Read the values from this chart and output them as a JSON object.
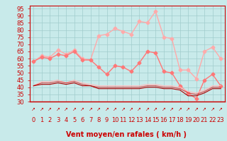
{
  "x": [
    0,
    1,
    2,
    3,
    4,
    5,
    6,
    7,
    8,
    9,
    10,
    11,
    12,
    13,
    14,
    15,
    16,
    17,
    18,
    19,
    20,
    21,
    22,
    23
  ],
  "series": [
    {
      "name": "rafales_top",
      "color": "#ffaaaa",
      "linewidth": 1.0,
      "marker": "D",
      "markersize": 2.5,
      "values": [
        58,
        62,
        61,
        66,
        63,
        66,
        60,
        59,
        76,
        77,
        81,
        79,
        77,
        86,
        85,
        93,
        75,
        74,
        52,
        52,
        46,
        65,
        68,
        60
      ]
    },
    {
      "name": "rafales_mid",
      "color": "#ff7777",
      "linewidth": 1.0,
      "marker": "D",
      "markersize": 2.5,
      "values": [
        58,
        61,
        60,
        63,
        62,
        65,
        59,
        59,
        54,
        49,
        55,
        54,
        51,
        57,
        65,
        64,
        51,
        50,
        41,
        36,
        32,
        45,
        49,
        41
      ]
    },
    {
      "name": "vent_band_top",
      "color": "#ffbbbb",
      "linewidth": 0.8,
      "marker": null,
      "markersize": 0,
      "values": [
        41,
        44,
        44,
        45,
        43,
        45,
        43,
        42,
        41,
        41,
        41,
        41,
        41,
        41,
        42,
        42,
        41,
        41,
        40,
        37,
        36,
        38,
        41,
        41
      ]
    },
    {
      "name": "vent_band_mid",
      "color": "#dd4444",
      "linewidth": 0.8,
      "marker": null,
      "markersize": 0,
      "values": [
        41,
        43,
        43,
        44,
        43,
        44,
        42,
        41,
        40,
        40,
        40,
        40,
        40,
        40,
        41,
        41,
        40,
        40,
        39,
        36,
        35,
        37,
        40,
        40
      ]
    },
    {
      "name": "vent_band_bot",
      "color": "#aa0000",
      "linewidth": 0.8,
      "marker": null,
      "markersize": 0,
      "values": [
        41,
        42,
        42,
        43,
        42,
        43,
        41,
        41,
        39,
        39,
        39,
        39,
        39,
        39,
        40,
        40,
        39,
        39,
        38,
        34,
        34,
        36,
        39,
        39
      ]
    }
  ],
  "xlabel": "Vent moyen/en rafales ( km/h )",
  "ylim": [
    30,
    97
  ],
  "yticks": [
    30,
    35,
    40,
    45,
    50,
    55,
    60,
    65,
    70,
    75,
    80,
    85,
    90,
    95
  ],
  "bg_color": "#c8eaea",
  "grid_color": "#a0cccc",
  "axis_color": "#cc0000",
  "text_color": "#cc0000",
  "xlabel_fontsize": 7,
  "tick_fontsize": 6
}
